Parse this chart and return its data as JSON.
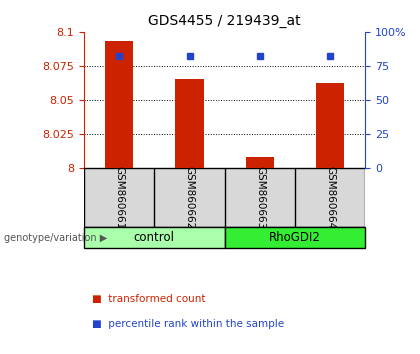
{
  "title": "GDS4455 / 219439_at",
  "samples": [
    "GSM860661",
    "GSM860662",
    "GSM860663",
    "GSM860664"
  ],
  "groups": [
    "control",
    "control",
    "RhoGDI2",
    "RhoGDI2"
  ],
  "transformed_counts": [
    8.093,
    8.065,
    8.008,
    8.062
  ],
  "percentile_ranks": [
    82,
    82,
    82,
    82
  ],
  "ymin": 8.0,
  "ymax": 8.1,
  "yticks": [
    8.0,
    8.025,
    8.05,
    8.075,
    8.1
  ],
  "ytick_labels": [
    "8",
    "8.025",
    "8.05",
    "8.075",
    "8.1"
  ],
  "right_yticks": [
    0,
    25,
    50,
    75,
    100
  ],
  "right_ytick_labels": [
    "0",
    "25",
    "50",
    "75",
    "100%"
  ],
  "bar_color": "#cc2200",
  "dot_color": "#2244cc",
  "group_colors": {
    "control": "#aaffaa",
    "RhoGDI2": "#33ee33"
  },
  "group_label": "genotype/variation",
  "legend_items": [
    "transformed count",
    "percentile rank within the sample"
  ],
  "bg_color": "#d8d8d8",
  "plot_bg": "#ffffff"
}
